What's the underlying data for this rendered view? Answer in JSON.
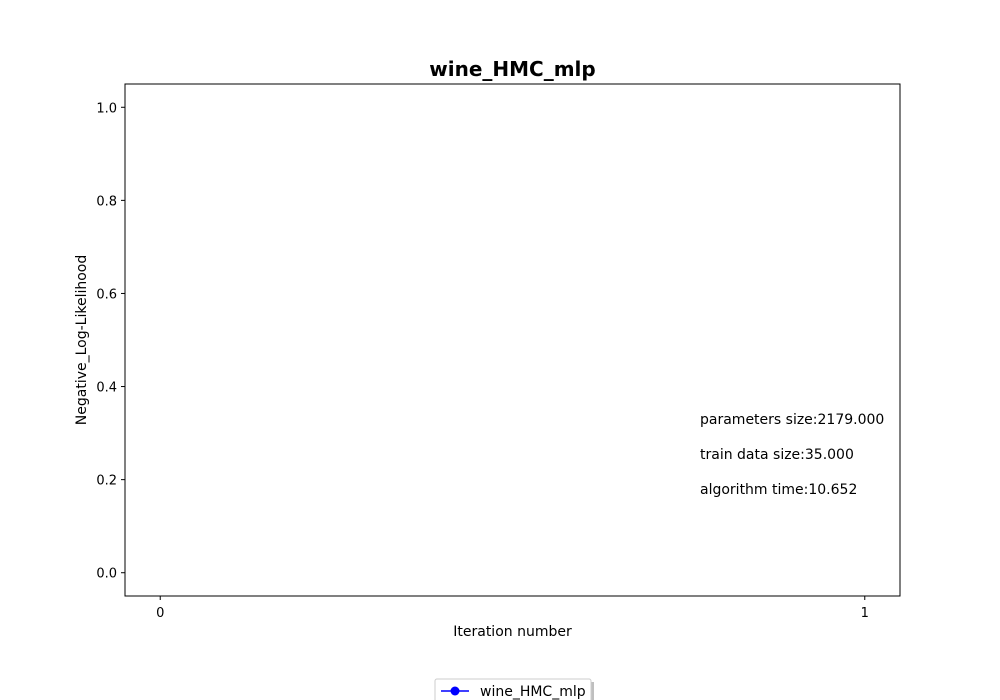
{
  "chart_data": {
    "type": "line",
    "title": "wine_HMC_mlp",
    "xlabel": "Iteration number",
    "ylabel": "Negative_Log-Likelihood",
    "xlim": [
      -0.05,
      1.05
    ],
    "ylim": [
      -0.05,
      1.05
    ],
    "xticks": [
      0,
      1
    ],
    "xtick_labels": [
      "0",
      "1"
    ],
    "yticks": [
      0.0,
      0.2,
      0.4,
      0.6,
      0.8,
      1.0
    ],
    "ytick_labels": [
      "0.0",
      "0.2",
      "0.4",
      "0.6",
      "0.8",
      "1.0"
    ],
    "grid": false,
    "legend_position": "bottom-center",
    "series": [
      {
        "name": "wine_HMC_mlp",
        "color": "#0000ff",
        "marker": "circle",
        "x": [],
        "y": []
      }
    ],
    "annotations": [
      "parameters size:2179.000",
      "train data size:35.000",
      "algorithm time:10.652"
    ]
  }
}
